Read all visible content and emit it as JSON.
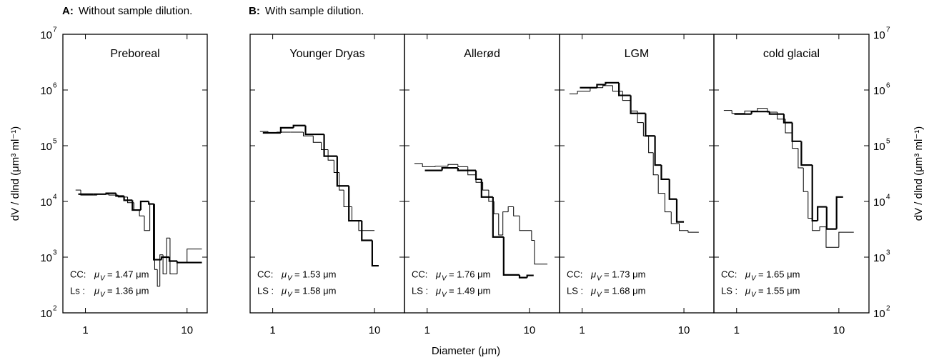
{
  "figure": {
    "headers": [
      {
        "letter": "A:",
        "text": "Without sample dilution."
      },
      {
        "letter": "B:",
        "text": "With sample dilution."
      }
    ],
    "xlabel": "Diameter  (μm)"
  },
  "chart_data": [
    {
      "type": "step",
      "title": "Preboreal",
      "log_x": true,
      "log_y": true,
      "xlim": [
        0.6,
        15.8
      ],
      "ylim": [
        100,
        10000000
      ],
      "xticks": [
        1,
        10
      ],
      "yticks": [
        {
          "value": 100,
          "label": "10",
          "exponent": "2"
        },
        {
          "value": 1000,
          "label": "10",
          "exponent": "3"
        },
        {
          "value": 10000,
          "label": "10",
          "exponent": "4"
        },
        {
          "value": 100000,
          "label": "10",
          "exponent": "5"
        },
        {
          "value": 1000000,
          "label": "10",
          "exponent": "6"
        },
        {
          "value": 10000000,
          "label": "10",
          "exponent": "7"
        }
      ],
      "ytick_label_side": "left",
      "ylabel": "dV / dlnd  (μm³ ml⁻¹)",
      "series": [
        {
          "color": "#000000",
          "line_width": 2.2,
          "bins": [
            0.85,
            1.2,
            1.6,
            2.0,
            2.4,
            2.9,
            3.5,
            4.2,
            4.7,
            5.6,
            6.7,
            8.0,
            14.0
          ],
          "values": [
            13500,
            13500,
            14000,
            12500,
            10500,
            7000,
            10000,
            9000,
            900,
            1000,
            850,
            800
          ]
        },
        {
          "color": "#000000",
          "line_width": 1,
          "bins": [
            0.8,
            0.9,
            1.3,
            1.7,
            2.1,
            2.6,
            3.0,
            3.4,
            3.8,
            4.3,
            4.8,
            5.1,
            5.4,
            5.8,
            6.3,
            6.8,
            8.0,
            10.0,
            14.0
          ],
          "values": [
            16000,
            13000,
            13500,
            13000,
            12000,
            9500,
            7000,
            5500,
            3000,
            9000,
            600,
            300,
            1100,
            500,
            2200,
            500,
            800,
            1400
          ]
        }
      ],
      "annotations": [
        {
          "label": "CC:",
          "symbol": "μ",
          "subscript": "V",
          "text": "= 1.47 μm"
        },
        {
          "label": "Ls :",
          "symbol": "μ",
          "subscript": "V",
          "text": "= 1.36 μm"
        }
      ]
    },
    {
      "type": "step",
      "title": "Younger Dryas",
      "log_x": true,
      "log_y": true,
      "xlim": [
        0.6,
        19.7
      ],
      "ylim": [
        100,
        10000000
      ],
      "xticks": [
        1,
        10
      ],
      "yticks": [
        100,
        1000,
        10000,
        100000,
        1000000,
        10000000
      ],
      "ytick_label_side": "none",
      "series": [
        {
          "color": "#000000",
          "line_width": 2.2,
          "bins": [
            0.8,
            1.2,
            1.6,
            2.1,
            3.2,
            4.3,
            5.6,
            7.5,
            9.5,
            11.0
          ],
          "values": [
            170000,
            210000,
            230000,
            160000,
            65000,
            19000,
            4500,
            2000,
            700
          ]
        },
        {
          "color": "#000000",
          "line_width": 1,
          "bins": [
            0.75,
            0.9,
            1.1,
            1.5,
            2.0,
            2.5,
            3.0,
            3.5,
            4.0,
            4.5,
            5.0,
            6.0,
            7.0,
            10.0
          ],
          "values": [
            180000,
            170000,
            175000,
            175000,
            150000,
            115000,
            85000,
            55000,
            33000,
            16000,
            8000,
            4500,
            3000
          ]
        }
      ],
      "annotations": [
        {
          "label": "CC:",
          "symbol": "μ",
          "subscript": "V",
          "text": "= 1.53 μm"
        },
        {
          "label": "LS :",
          "symbol": "μ",
          "subscript": "V",
          "text": "= 1.58 μm"
        }
      ]
    },
    {
      "type": "step",
      "title": "Allerød",
      "log_x": true,
      "log_y": true,
      "xlim": [
        0.6,
        19.7
      ],
      "ylim": [
        100,
        10000000
      ],
      "xticks": [
        1,
        10
      ],
      "yticks": [
        100,
        1000,
        10000,
        100000,
        1000000,
        10000000
      ],
      "ytick_label_side": "none",
      "series": [
        {
          "color": "#000000",
          "line_width": 2.2,
          "bins": [
            0.95,
            1.4,
            2.0,
            3.0,
            3.4,
            4.4,
            5.6,
            8.0,
            9.5,
            11.0
          ],
          "values": [
            36000,
            40000,
            36000,
            25000,
            12000,
            2300,
            480,
            430,
            470
          ]
        },
        {
          "color": "#000000",
          "line_width": 1,
          "bins": [
            0.75,
            0.9,
            1.2,
            1.6,
            2.0,
            2.5,
            3.0,
            3.5,
            4.0,
            4.5,
            5.0,
            5.5,
            6.2,
            7.0,
            8.0,
            10.5,
            11.2,
            15.0
          ],
          "values": [
            48000,
            42000,
            43000,
            46000,
            42000,
            30000,
            22000,
            16000,
            10000,
            6000,
            2500,
            6500,
            8000,
            5500,
            3000,
            2000,
            750
          ]
        }
      ],
      "annotations": [
        {
          "label": "CC:",
          "symbol": "μ",
          "subscript": "V",
          "text": "= 1.76 μm"
        },
        {
          "label": "LS :",
          "symbol": "μ",
          "subscript": "V",
          "text": "= 1.49 μm"
        }
      ]
    },
    {
      "type": "step",
      "title": "LGM",
      "log_x": true,
      "log_y": true,
      "xlim": [
        0.6,
        19.7
      ],
      "ylim": [
        100,
        10000000
      ],
      "xticks": [
        1,
        10
      ],
      "yticks": [
        100,
        1000,
        10000,
        100000,
        1000000,
        10000000
      ],
      "ytick_label_side": "none",
      "series": [
        {
          "color": "#000000",
          "line_width": 2.2,
          "bins": [
            0.95,
            1.4,
            1.7,
            2.3,
            3.0,
            4.2,
            5.2,
            6.0,
            7.2,
            8.5,
            10.0
          ],
          "values": [
            1100000,
            1250000,
            1350000,
            800000,
            380000,
            150000,
            45000,
            25000,
            11000,
            4300
          ]
        },
        {
          "color": "#000000",
          "line_width": 1,
          "bins": [
            0.75,
            0.9,
            1.2,
            1.6,
            2.0,
            2.5,
            3.0,
            3.5,
            4.0,
            4.5,
            5.0,
            5.6,
            6.5,
            7.5,
            9.0,
            11.0,
            14.0
          ],
          "values": [
            850000,
            950000,
            1100000,
            1200000,
            950000,
            650000,
            420000,
            260000,
            150000,
            75000,
            30000,
            14000,
            6500,
            4000,
            3000,
            2800
          ]
        }
      ],
      "annotations": [
        {
          "label": "CC:",
          "symbol": "μ",
          "subscript": "V",
          "text": "= 1.73 μm"
        },
        {
          "label": "LS :",
          "symbol": "μ",
          "subscript": "V",
          "text": "= 1.68 μm"
        }
      ]
    },
    {
      "type": "step",
      "title": "cold glacial",
      "log_x": true,
      "log_y": true,
      "xlim": [
        0.6,
        19.7
      ],
      "ylim": [
        100,
        10000000
      ],
      "xticks": [
        1,
        10
      ],
      "yticks": [
        {
          "value": 100,
          "label": "10",
          "exponent": "2"
        },
        {
          "value": 1000,
          "label": "10",
          "exponent": "3"
        },
        {
          "value": 10000,
          "label": "10",
          "exponent": "4"
        },
        {
          "value": 100000,
          "label": "10",
          "exponent": "5"
        },
        {
          "value": 1000000,
          "label": "10",
          "exponent": "6"
        },
        {
          "value": 10000000,
          "label": "10",
          "exponent": "7"
        }
      ],
      "ytick_label_side": "right",
      "ylabel": "dV / dlnd  (μm³ ml⁻¹)",
      "series": [
        {
          "color": "#000000",
          "line_width": 2.2,
          "bins": [
            0.95,
            1.4,
            2.1,
            2.9,
            3.5,
            4.3,
            5.5,
            6.2,
            7.6,
            9.5,
            11.0
          ],
          "values": [
            370000,
            410000,
            370000,
            260000,
            120000,
            45000,
            4500,
            8000,
            3200,
            12000
          ]
        },
        {
          "color": "#000000",
          "line_width": 1,
          "bins": [
            0.75,
            0.9,
            1.2,
            1.6,
            2.0,
            2.5,
            3.0,
            3.5,
            4.0,
            4.5,
            5.0,
            5.5,
            6.5,
            7.5,
            10.0,
            14.0
          ],
          "values": [
            430000,
            380000,
            420000,
            470000,
            400000,
            300000,
            170000,
            90000,
            40000,
            15000,
            5000,
            3000,
            3500,
            1500,
            2800
          ]
        }
      ],
      "annotations": [
        {
          "label": "CC:",
          "symbol": "μ",
          "subscript": "V",
          "text": "= 1.65 μm"
        },
        {
          "label": "LS :",
          "symbol": "μ",
          "subscript": "V",
          "text": "= 1.55 μm"
        }
      ]
    }
  ]
}
